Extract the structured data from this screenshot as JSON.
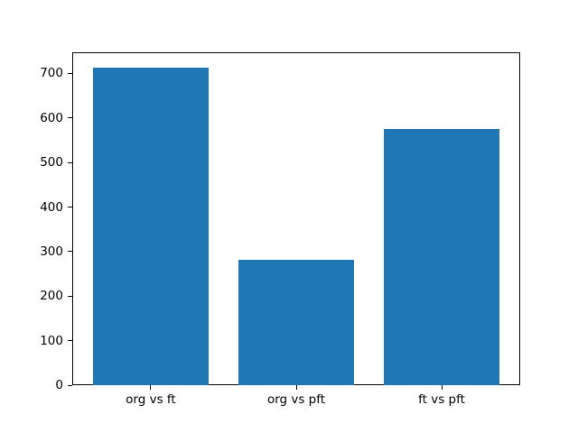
{
  "chart_data": {
    "type": "bar",
    "categories": [
      "org vs ft",
      "org vs pft",
      "ft vs pft"
    ],
    "values": [
      712,
      281,
      575
    ],
    "title": "",
    "xlabel": "",
    "ylabel": "",
    "ylim": [
      0,
      748
    ],
    "yticks": [
      0,
      100,
      200,
      300,
      400,
      500,
      600,
      700
    ],
    "bar_color": "#1f77b4",
    "background_color": "#ffffff",
    "spine_color": "#000000",
    "grid": false,
    "legend": null
  }
}
